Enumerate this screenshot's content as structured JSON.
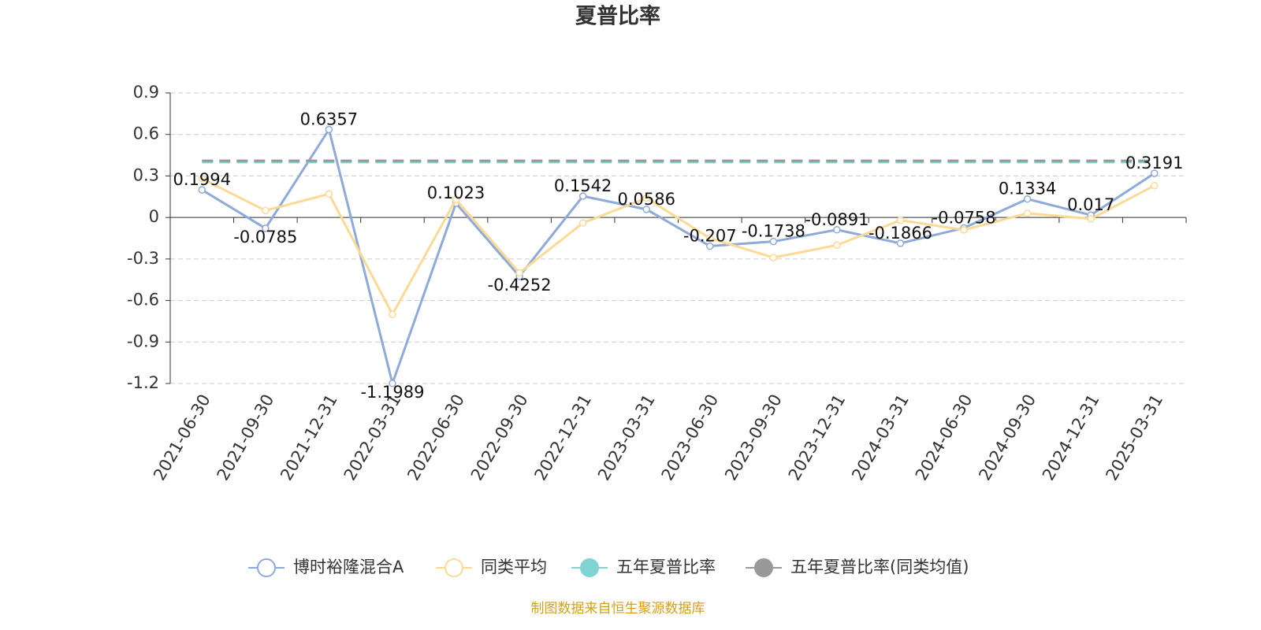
{
  "chart_data": {
    "type": "line",
    "title": "夏普比率",
    "source": "制图数据来自恒生聚源数据库",
    "categories": [
      "2021-06-30",
      "2021-09-30",
      "2021-12-31",
      "2022-03-31",
      "2022-06-30",
      "2022-09-30",
      "2022-12-31",
      "2023-03-31",
      "2023-06-30",
      "2023-09-30",
      "2023-12-31",
      "2024-03-31",
      "2024-06-30",
      "2024-09-30",
      "2024-12-31",
      "2025-03-31"
    ],
    "series": [
      {
        "name": "博时裕隆混合A",
        "color": "#8eaad8",
        "values": [
          0.1994,
          -0.0785,
          0.6357,
          -1.1989,
          0.1023,
          -0.4252,
          0.1542,
          0.0586,
          -0.207,
          -0.1738,
          -0.0891,
          -0.1866,
          -0.0758,
          0.1334,
          0.017,
          0.3191
        ]
      },
      {
        "name": "同类平均",
        "color": "#fcd995",
        "values": [
          0.28,
          0.05,
          0.17,
          -0.7,
          0.13,
          -0.4,
          -0.04,
          0.14,
          -0.15,
          -0.29,
          -0.2,
          -0.02,
          -0.09,
          0.03,
          -0.01,
          0.23
        ]
      },
      {
        "name": "五年夏普比率",
        "color": "#7fd3d0",
        "values": [
          0.4,
          0.4,
          0.4,
          0.4,
          0.4,
          0.4,
          0.4,
          0.4,
          0.4,
          0.4,
          0.4,
          0.4,
          0.4,
          0.4,
          0.4,
          0.4
        ]
      },
      {
        "name": "五年夏普比率(同类均值)",
        "color": "#999999",
        "values": [
          0.41,
          0.41,
          0.41,
          0.41,
          0.41,
          0.41,
          0.41,
          0.41,
          0.41,
          0.41,
          0.41,
          0.41,
          0.41,
          0.41,
          0.41,
          0.41
        ]
      }
    ],
    "ylim": [
      -1.2,
      0.9
    ],
    "yticks": [
      0.9,
      0.6,
      0.3,
      0,
      -0.3,
      -0.6,
      -0.9,
      -1.2
    ],
    "grid": true
  }
}
